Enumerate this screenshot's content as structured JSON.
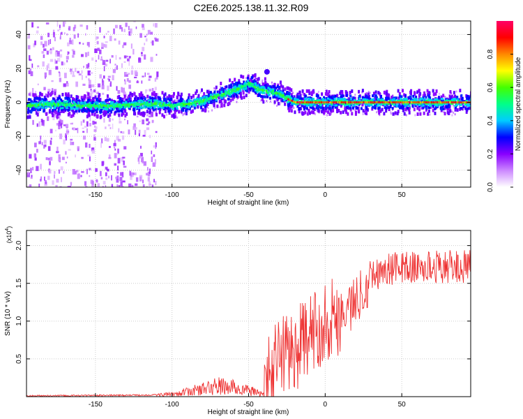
{
  "page_title": "C2E6.2025.138.11.32.R09",
  "chart_data": [
    {
      "type": "heatmap",
      "xlabel": "Height of straight line (km)",
      "ylabel": "Frequency (Hz)",
      "xlim": [
        -195,
        95
      ],
      "ylim": [
        -50,
        48
      ],
      "xticks": [
        -150,
        -100,
        -50,
        0,
        50
      ],
      "yticks": [
        -40,
        -20,
        0,
        20,
        40
      ],
      "colorbar": {
        "label": "Normalized spectral amplitude",
        "range": [
          0,
          1
        ],
        "ticks": [
          0.0,
          0.2,
          0.4,
          0.6,
          0.8
        ],
        "colors": [
          "#ffffff",
          "#cc88ff",
          "#8800ff",
          "#0000ff",
          "#00ccff",
          "#00ff88",
          "#44ff00",
          "#ffff00",
          "#ff8800",
          "#ff0000",
          "#ff0066"
        ]
      },
      "ridge": {
        "x": [
          -195,
          -180,
          -160,
          -140,
          -120,
          -110,
          -100,
          -90,
          -80,
          -70,
          -60,
          -55,
          -50,
          -48,
          -45,
          -40,
          -35,
          -30,
          -25,
          -20,
          -10,
          0,
          20,
          40,
          60,
          80,
          95
        ],
        "frequency": [
          -2,
          -1,
          -2,
          -2,
          -1,
          -1,
          -2,
          -1,
          1,
          4,
          7,
          9,
          11,
          11,
          8,
          7,
          6,
          5,
          2,
          0,
          0,
          0,
          0,
          0,
          0,
          0,
          0
        ]
      },
      "colors": {
        "grid": "#cccccc"
      }
    },
    {
      "type": "line",
      "xlabel": "Height of straight line (km)",
      "ylabel": "SNR (10 * v/v)",
      "scale_label": "(x10",
      "scale_exponent": "4",
      "scale_suffix": ")",
      "xlim": [
        -195,
        95
      ],
      "ylim": [
        0,
        2.2
      ],
      "xticks": [
        -150,
        -100,
        -50,
        0,
        50
      ],
      "yticks": [
        0.5,
        1.0,
        1.5,
        2.0
      ],
      "series": [
        {
          "color": "#ee3333",
          "baseline_x": [
            -195,
            -120,
            -100,
            -80,
            -70,
            -60,
            -50,
            -45,
            -40,
            -38,
            -35,
            -30,
            -25,
            -20,
            -15,
            -10,
            -5,
            0,
            10,
            20,
            25,
            30,
            40,
            50,
            60,
            70,
            80,
            95
          ],
          "baseline_y": [
            0.01,
            0.02,
            0.03,
            0.1,
            0.14,
            0.12,
            0.08,
            0.06,
            0.03,
            0.2,
            0.35,
            0.55,
            0.62,
            0.6,
            0.72,
            0.8,
            0.9,
            1.0,
            1.1,
            1.25,
            1.45,
            1.6,
            1.68,
            1.72,
            1.7,
            1.72,
            1.72,
            1.72
          ]
        }
      ]
    }
  ]
}
